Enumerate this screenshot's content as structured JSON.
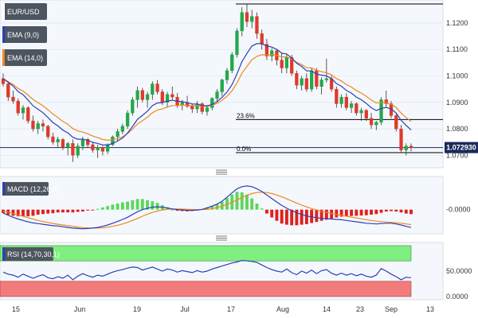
{
  "chart_data": [
    {
      "type": "candlestick",
      "panel": "price",
      "title": "EUR/USD",
      "y_ticks": [
        "1.1200",
        "1.1100",
        "1.1000",
        "1.0900",
        "1.0800",
        "1.0700"
      ],
      "ylim": [
        1.0665,
        1.1275
      ],
      "last_price": "1.072930",
      "grid": true,
      "candles": [
        [
          1.099,
          1.101,
          1.096,
          1.097
        ],
        [
          1.097,
          1.098,
          1.0905,
          1.092
        ],
        [
          1.092,
          1.0945,
          1.0895,
          1.0905
        ],
        [
          1.0905,
          1.0915,
          1.085,
          1.086
        ],
        [
          1.086,
          1.089,
          1.0835,
          1.088
        ],
        [
          1.088,
          1.0885,
          1.082,
          1.083
        ],
        [
          1.083,
          1.085,
          1.079,
          1.08
        ],
        [
          1.08,
          1.083,
          1.078,
          1.082
        ],
        [
          1.082,
          1.0835,
          1.079,
          1.081
        ],
        [
          1.081,
          1.0815,
          1.076,
          1.077
        ],
        [
          1.077,
          1.0785,
          1.074,
          1.075
        ],
        [
          1.075,
          1.077,
          1.073,
          1.076
        ],
        [
          1.076,
          1.0765,
          1.072,
          1.073
        ],
        [
          1.073,
          1.075,
          1.07,
          1.0745
        ],
        [
          1.0745,
          1.076,
          1.0675,
          1.07
        ],
        [
          1.07,
          1.0745,
          1.069,
          1.0735
        ],
        [
          1.0735,
          1.077,
          1.072,
          1.076
        ],
        [
          1.076,
          1.0765,
          1.073,
          1.074
        ],
        [
          1.074,
          1.075,
          1.071,
          1.072
        ],
        [
          1.072,
          1.074,
          1.069,
          1.073
        ],
        [
          1.073,
          1.0735,
          1.07,
          1.0715
        ],
        [
          1.0715,
          1.0745,
          1.0705,
          1.074
        ],
        [
          1.074,
          1.0775,
          1.0735,
          1.077
        ],
        [
          1.077,
          1.08,
          1.0755,
          1.079
        ],
        [
          1.079,
          1.082,
          1.078,
          1.081
        ],
        [
          1.081,
          1.087,
          1.08,
          1.086
        ],
        [
          1.086,
          1.092,
          1.085,
          1.091
        ],
        [
          1.091,
          1.096,
          1.088,
          1.0945
        ],
        [
          1.0945,
          1.0955,
          1.09,
          1.091
        ],
        [
          1.091,
          1.094,
          1.088,
          1.093
        ],
        [
          1.093,
          1.098,
          1.091,
          1.097
        ],
        [
          1.097,
          1.0985,
          1.093,
          1.094
        ],
        [
          1.094,
          1.095,
          1.089,
          1.09
        ],
        [
          1.09,
          1.094,
          1.088,
          1.093
        ],
        [
          1.093,
          1.096,
          1.091,
          1.092
        ],
        [
          1.092,
          1.0935,
          1.088,
          1.089
        ],
        [
          1.089,
          1.091,
          1.087,
          1.09
        ],
        [
          1.09,
          1.0925,
          1.088,
          1.0885
        ],
        [
          1.0885,
          1.0895,
          1.086,
          1.0875
        ],
        [
          1.0875,
          1.0905,
          1.086,
          1.0895
        ],
        [
          1.0895,
          1.09,
          1.0855,
          1.0865
        ],
        [
          1.0865,
          1.089,
          1.085,
          1.088
        ],
        [
          1.088,
          1.092,
          1.087,
          1.0915
        ],
        [
          1.0915,
          1.095,
          1.09,
          1.094
        ],
        [
          1.094,
          1.099,
          1.0925,
          1.0985
        ],
        [
          1.0985,
          1.103,
          1.097,
          1.102
        ],
        [
          1.102,
          1.109,
          1.101,
          1.108
        ],
        [
          1.108,
          1.118,
          1.107,
          1.117
        ],
        [
          1.117,
          1.126,
          1.115,
          1.124
        ],
        [
          1.124,
          1.127,
          1.1185,
          1.1205
        ],
        [
          1.1205,
          1.125,
          1.118,
          1.1225
        ],
        [
          1.1225,
          1.124,
          1.114,
          1.116
        ],
        [
          1.116,
          1.1175,
          1.11,
          1.112
        ],
        [
          1.112,
          1.114,
          1.106,
          1.1075
        ],
        [
          1.1075,
          1.1105,
          1.1055,
          1.1095
        ],
        [
          1.1095,
          1.11,
          1.104,
          1.106
        ],
        [
          1.106,
          1.1085,
          1.101,
          1.103
        ],
        [
          1.103,
          1.108,
          1.101,
          1.107
        ],
        [
          1.107,
          1.108,
          1.1,
          1.101
        ],
        [
          1.101,
          1.102,
          1.095,
          1.0965
        ],
        [
          1.0965,
          1.1,
          1.0945,
          1.099
        ],
        [
          1.099,
          1.101,
          1.094,
          1.095
        ],
        [
          1.095,
          1.103,
          1.094,
          1.102
        ],
        [
          1.102,
          1.103,
          1.095,
          1.096
        ],
        [
          1.096,
          1.0995,
          1.093,
          1.0985
        ],
        [
          1.0985,
          1.1065,
          1.0975,
          1.099
        ],
        [
          1.099,
          1.1,
          1.094,
          1.095
        ],
        [
          1.095,
          1.096,
          1.088,
          1.0895
        ],
        [
          1.0895,
          1.093,
          1.088,
          1.092
        ],
        [
          1.092,
          1.0935,
          1.087,
          1.088
        ],
        [
          1.088,
          1.0905,
          1.086,
          1.0895
        ],
        [
          1.0895,
          1.09,
          1.085,
          1.086
        ],
        [
          1.086,
          1.088,
          1.083,
          1.087
        ],
        [
          1.087,
          1.0875,
          1.083,
          1.084
        ],
        [
          1.084,
          1.086,
          1.08,
          1.0815
        ],
        [
          1.0815,
          1.083,
          1.0795,
          1.0825
        ],
        [
          1.0825,
          1.092,
          1.0815,
          1.091
        ],
        [
          1.091,
          1.0945,
          1.088,
          1.0895
        ],
        [
          1.0895,
          1.0905,
          1.084,
          1.085
        ],
        [
          1.085,
          1.086,
          1.079,
          1.08
        ],
        [
          1.08,
          1.0815,
          1.071,
          1.072
        ],
        [
          1.072,
          1.0745,
          1.07,
          1.0735
        ],
        [
          1.0735,
          1.0745,
          1.0715,
          1.0729
        ]
      ],
      "ema_9": [
        1.099,
        1.0976,
        1.0962,
        1.0941,
        1.0929,
        1.0909,
        1.0887,
        1.0874,
        1.0861,
        1.0843,
        1.0824,
        1.0811,
        1.0795,
        1.0785,
        1.0768,
        1.0761,
        1.0761,
        1.0757,
        1.0749,
        1.0745,
        1.0739,
        1.0739,
        1.0745,
        1.0754,
        1.0765,
        1.0784,
        1.0809,
        1.0836,
        1.0851,
        1.0867,
        1.0888,
        1.0898,
        1.0899,
        1.0905,
        1.0908,
        1.0904,
        1.0903,
        1.0899,
        1.0894,
        1.0894,
        1.0888,
        1.0887,
        1.0892,
        1.0903,
        1.0919,
        1.0939,
        1.0967,
        1.1008,
        1.1054,
        1.1085,
        1.1113,
        1.1122,
        1.1122,
        1.1113,
        1.1109,
        1.11,
        1.1086,
        1.1083,
        1.1068,
        1.1048,
        1.1036,
        1.1019,
        1.1019,
        1.1007,
        1.1003,
        1.1,
        1.099,
        1.0971,
        1.0961,
        1.0945,
        1.0935,
        1.092,
        1.091,
        1.0896,
        1.088,
        1.0869,
        1.0877,
        1.0881,
        1.0875,
        1.086,
        1.0832,
        1.0813,
        1.0796
      ],
      "ema_14": [
        1.099,
        1.0978,
        1.0968,
        1.0953,
        1.0943,
        1.0928,
        1.0911,
        1.0899,
        1.0887,
        1.0872,
        1.0856,
        1.0843,
        1.0828,
        1.0817,
        1.0801,
        1.0792,
        1.0788,
        1.0781,
        1.0773,
        1.0767,
        1.076,
        1.0757,
        1.0759,
        1.0763,
        1.077,
        1.0782,
        1.0799,
        1.0819,
        1.0831,
        1.0844,
        1.0861,
        1.0871,
        1.0875,
        1.0883,
        1.0888,
        1.0888,
        1.089,
        1.0889,
        1.0887,
        1.0889,
        1.0886,
        1.0885,
        1.0889,
        1.0896,
        1.0908,
        1.0923,
        1.0944,
        1.0974,
        1.101,
        1.1036,
        1.1061,
        1.1074,
        1.108,
        1.1079,
        1.1081,
        1.1078,
        1.1072,
        1.1072,
        1.1064,
        1.1051,
        1.1043,
        1.1031,
        1.103,
        1.1021,
        1.1016,
        1.1012,
        1.1004,
        1.099,
        1.0981,
        1.0967,
        1.0958,
        1.0945,
        1.0935,
        1.0923,
        1.0909,
        1.0898,
        1.09,
        1.0899,
        1.0893,
        1.0881,
        1.0859,
        1.0843,
        1.0828
      ],
      "fib_levels": [
        {
          "label": "23.6%",
          "value": 1.0835
        },
        {
          "label": "0.0%",
          "value": 1.071
        }
      ],
      "price_line": 1.07293,
      "top_line": 1.1272,
      "x_ticks": [
        "15",
        "Jun",
        "19",
        "Jul",
        "17",
        "Aug",
        "14",
        "23",
        "Sep",
        "13"
      ],
      "legend": [
        {
          "label": "EUR/USD",
          "color": "#ffffff"
        },
        {
          "label": "EMA (9,0)",
          "color": "#2b3fb8"
        },
        {
          "label": "EMA (14,0)",
          "color": "#f0871e"
        }
      ],
      "candle_colors": {
        "up": "#22a84a",
        "down": "#e0392b"
      }
    },
    {
      "type": "macd",
      "panel": "macd",
      "title": "MACD (12,26,9)",
      "y_ticks": [
        "-0.0000"
      ],
      "macd_line": [
        -0.5,
        -0.8,
        -1.1,
        -1.35,
        -1.55,
        -1.75,
        -1.9,
        -2.0,
        -2.1,
        -2.2,
        -2.3,
        -2.35,
        -2.45,
        -2.55,
        -2.65,
        -2.7,
        -2.75,
        -2.7,
        -2.65,
        -2.55,
        -2.4,
        -2.2,
        -1.95,
        -1.7,
        -1.4,
        -1.1,
        -0.7,
        -0.3,
        0.0,
        0.2,
        0.35,
        0.4,
        0.35,
        0.25,
        0.1,
        0.0,
        -0.05,
        -0.1,
        -0.1,
        -0.05,
        0.05,
        0.25,
        0.5,
        0.8,
        1.2,
        1.8,
        2.4,
        3.0,
        3.3,
        3.4,
        3.3,
        3.0,
        2.6,
        2.1,
        1.6,
        1.1,
        0.6,
        0.2,
        -0.15,
        -0.45,
        -0.7,
        -0.9,
        -1.05,
        -1.15,
        -1.25,
        -1.3,
        -1.35,
        -1.4,
        -1.45,
        -1.55,
        -1.65,
        -1.75,
        -1.85,
        -1.95,
        -2.0,
        -2.05,
        -2.0,
        -1.95,
        -1.95,
        -2.05,
        -2.2,
        -2.4,
        -2.55
      ],
      "signal_line": [
        -0.2,
        -0.35,
        -0.55,
        -0.75,
        -0.95,
        -1.15,
        -1.35,
        -1.55,
        -1.7,
        -1.85,
        -1.98,
        -2.1,
        -2.2,
        -2.3,
        -2.4,
        -2.5,
        -2.58,
        -2.62,
        -2.64,
        -2.63,
        -2.6,
        -2.52,
        -2.4,
        -2.25,
        -2.05,
        -1.82,
        -1.55,
        -1.25,
        -0.95,
        -0.65,
        -0.4,
        -0.2,
        -0.05,
        0.05,
        0.1,
        0.1,
        0.08,
        0.05,
        0.02,
        0.0,
        0.0,
        0.05,
        0.15,
        0.3,
        0.5,
        0.75,
        1.05,
        1.4,
        1.75,
        2.05,
        2.3,
        2.45,
        2.5,
        2.45,
        2.3,
        2.1,
        1.85,
        1.55,
        1.25,
        0.95,
        0.65,
        0.4,
        0.15,
        -0.05,
        -0.25,
        -0.4,
        -0.55,
        -0.7,
        -0.82,
        -0.95,
        -1.08,
        -1.2,
        -1.32,
        -1.45,
        -1.55,
        -1.65,
        -1.72,
        -1.78,
        -1.82,
        -1.88,
        -1.95,
        -2.05,
        -2.15
      ],
      "range": [
        -3.0,
        4.3
      ],
      "histogram_colors": {
        "positive": "#5dd65d",
        "negative": "#e01f1f"
      },
      "colors": {
        "macd": "#2b3fb8",
        "signal": "#f0871e"
      }
    },
    {
      "type": "rsi",
      "panel": "rsi",
      "title": "RSI (14,70,30,1)",
      "y_ticks": [
        "50.0000",
        "0.0000"
      ],
      "overbought": 70,
      "oversold": 30,
      "range": [
        0,
        100
      ],
      "values": [
        48,
        44,
        42,
        38,
        44,
        40,
        36,
        40,
        43,
        37,
        35,
        39,
        36,
        42,
        33,
        40,
        45,
        41,
        38,
        42,
        40,
        44,
        48,
        51,
        53,
        56,
        58,
        57,
        52,
        55,
        58,
        54,
        50,
        54,
        52,
        48,
        51,
        49,
        47,
        51,
        48,
        50,
        54,
        57,
        60,
        63,
        66,
        68,
        71,
        70,
        69,
        67,
        62,
        57,
        53,
        50,
        48,
        54,
        47,
        43,
        50,
        46,
        52,
        45,
        51,
        53,
        46,
        42,
        46,
        42,
        45,
        41,
        44,
        40,
        38,
        42,
        55,
        50,
        44,
        39,
        33,
        38,
        37
      ],
      "colors": {
        "line": "#2b3fb8",
        "overbought_zone": "#7fef7f",
        "oversold_zone": "#f27b7b"
      }
    }
  ]
}
